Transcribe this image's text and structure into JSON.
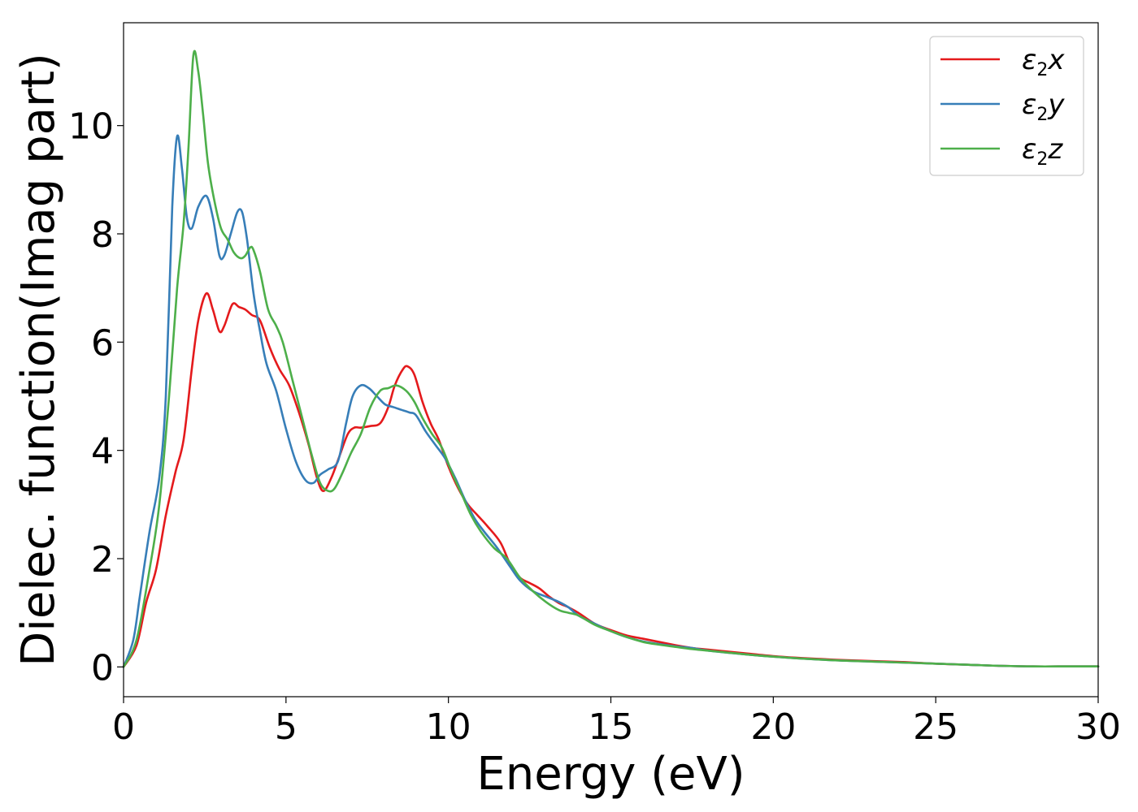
{
  "chart_data": {
    "type": "line",
    "title": "",
    "xlabel": "Energy (eV)",
    "ylabel": "Dielec. function(Imag part)",
    "xlim": [
      0,
      30
    ],
    "ylim": [
      -0.55,
      11.9
    ],
    "xticks": [
      0,
      5,
      10,
      15,
      20,
      25,
      30
    ],
    "yticks": [
      0,
      2,
      4,
      6,
      8,
      10
    ],
    "grid": false,
    "legend_position": "top-right",
    "series": [
      {
        "name": "ε₂x",
        "legend_base": "ε",
        "legend_sub": "2",
        "legend_var": "x",
        "color": "#e41a1c",
        "x": [
          0,
          0.4,
          0.7,
          1.0,
          1.3,
          1.6,
          1.85,
          2.1,
          2.3,
          2.55,
          2.75,
          2.95,
          3.1,
          3.35,
          3.55,
          3.75,
          3.95,
          4.2,
          4.5,
          4.8,
          5.1,
          5.4,
          5.7,
          5.95,
          6.15,
          6.4,
          6.65,
          6.9,
          7.1,
          7.3,
          7.6,
          7.9,
          8.15,
          8.35,
          8.6,
          8.75,
          8.95,
          9.2,
          9.45,
          9.7,
          10.0,
          10.3,
          10.6,
          10.9,
          11.2,
          11.6,
          11.9,
          12.2,
          12.5,
          12.8,
          13.1,
          13.4,
          13.7,
          14.0,
          14.5,
          15.0,
          15.5,
          16.0,
          16.5,
          17.0,
          17.5,
          18.0,
          19.0,
          20.0,
          21.0,
          22.0,
          23.0,
          24.0,
          25.0,
          26.0,
          27.0,
          28.0,
          29.0,
          30.0
        ],
        "y": [
          0,
          0.4,
          1.2,
          1.8,
          2.8,
          3.6,
          4.2,
          5.5,
          6.4,
          6.9,
          6.6,
          6.2,
          6.3,
          6.7,
          6.65,
          6.6,
          6.5,
          6.4,
          5.9,
          5.5,
          5.2,
          4.7,
          4.1,
          3.5,
          3.25,
          3.5,
          3.9,
          4.3,
          4.42,
          4.42,
          4.45,
          4.5,
          4.8,
          5.2,
          5.5,
          5.55,
          5.4,
          4.9,
          4.5,
          4.2,
          3.7,
          3.3,
          3.0,
          2.8,
          2.6,
          2.3,
          1.9,
          1.65,
          1.55,
          1.45,
          1.3,
          1.18,
          1.1,
          1.0,
          0.8,
          0.68,
          0.58,
          0.52,
          0.46,
          0.4,
          0.35,
          0.32,
          0.26,
          0.2,
          0.16,
          0.13,
          0.11,
          0.09,
          0.06,
          0.04,
          0.02,
          0.01,
          0.01,
          0.01
        ]
      },
      {
        "name": "ε₂y",
        "legend_base": "ε",
        "legend_sub": "2",
        "legend_var": "y",
        "color": "#377eb8",
        "x": [
          0,
          0.3,
          0.5,
          0.8,
          1.1,
          1.3,
          1.5,
          1.65,
          1.8,
          1.95,
          2.1,
          2.3,
          2.55,
          2.75,
          2.95,
          3.1,
          3.3,
          3.5,
          3.65,
          3.8,
          4.0,
          4.2,
          4.4,
          4.7,
          5.0,
          5.3,
          5.6,
          5.85,
          6.05,
          6.3,
          6.6,
          6.85,
          7.05,
          7.3,
          7.55,
          7.8,
          8.05,
          8.3,
          8.55,
          8.8,
          9.0,
          9.3,
          9.6,
          9.9,
          10.2,
          10.5,
          10.8,
          11.1,
          11.5,
          11.9,
          12.2,
          12.6,
          13.0,
          13.4,
          13.7,
          14.0,
          14.5,
          15.0,
          15.5,
          16.0,
          16.5,
          17.0,
          17.5,
          18.0,
          19.0,
          20.0,
          21.0,
          22.0,
          23.0,
          24.0,
          25.0,
          26.0,
          27.0,
          28.0,
          29.0,
          30.0
        ],
        "y": [
          0,
          0.5,
          1.3,
          2.5,
          3.5,
          5.0,
          8.5,
          9.8,
          9.2,
          8.3,
          8.1,
          8.5,
          8.7,
          8.3,
          7.6,
          7.6,
          8.0,
          8.4,
          8.4,
          7.9,
          6.9,
          6.2,
          5.6,
          5.1,
          4.4,
          3.8,
          3.45,
          3.4,
          3.55,
          3.65,
          3.8,
          4.5,
          5.0,
          5.2,
          5.15,
          5.0,
          4.85,
          4.8,
          4.75,
          4.7,
          4.65,
          4.35,
          4.1,
          3.85,
          3.5,
          3.1,
          2.75,
          2.5,
          2.2,
          1.85,
          1.6,
          1.4,
          1.3,
          1.2,
          1.1,
          0.95,
          0.8,
          0.66,
          0.55,
          0.47,
          0.42,
          0.38,
          0.35,
          0.3,
          0.24,
          0.19,
          0.15,
          0.12,
          0.1,
          0.08,
          0.06,
          0.04,
          0.02,
          0.01,
          0.01,
          0.01
        ]
      },
      {
        "name": "ε₂z",
        "legend_base": "ε",
        "legend_sub": "2",
        "legend_var": "z",
        "color": "#4daf4a",
        "x": [
          0,
          0.4,
          0.8,
          1.1,
          1.4,
          1.65,
          1.85,
          2.0,
          2.15,
          2.3,
          2.45,
          2.6,
          2.8,
          3.0,
          3.2,
          3.4,
          3.6,
          3.75,
          3.9,
          4.0,
          4.2,
          4.45,
          4.7,
          4.9,
          5.2,
          5.5,
          5.8,
          6.05,
          6.3,
          6.5,
          6.75,
          7.0,
          7.3,
          7.6,
          7.9,
          8.15,
          8.4,
          8.7,
          8.95,
          9.2,
          9.5,
          9.8,
          10.1,
          10.4,
          10.7,
          11.0,
          11.4,
          11.8,
          12.2,
          12.6,
          13.0,
          13.4,
          13.7,
          14.0,
          14.5,
          15.0,
          15.5,
          16.0,
          16.5,
          17.0,
          17.5,
          18.0,
          19.0,
          20.0,
          21.0,
          22.0,
          23.0,
          24.0,
          25.0,
          26.0,
          27.0,
          28.0,
          29.0,
          30.0
        ],
        "y": [
          0,
          0.5,
          1.8,
          3.0,
          5.0,
          7.0,
          8.2,
          9.6,
          11.3,
          11.0,
          10.2,
          9.3,
          8.6,
          8.1,
          7.9,
          7.65,
          7.55,
          7.6,
          7.75,
          7.7,
          7.3,
          6.6,
          6.3,
          6.0,
          5.3,
          4.6,
          3.9,
          3.4,
          3.25,
          3.3,
          3.6,
          3.95,
          4.3,
          4.8,
          5.1,
          5.15,
          5.2,
          5.1,
          4.9,
          4.6,
          4.3,
          4.05,
          3.6,
          3.2,
          2.8,
          2.5,
          2.2,
          2.0,
          1.65,
          1.4,
          1.2,
          1.05,
          1.0,
          0.95,
          0.78,
          0.66,
          0.55,
          0.46,
          0.41,
          0.37,
          0.33,
          0.3,
          0.24,
          0.19,
          0.15,
          0.12,
          0.1,
          0.08,
          0.06,
          0.04,
          0.02,
          0.01,
          0.01,
          0.01
        ]
      }
    ]
  }
}
